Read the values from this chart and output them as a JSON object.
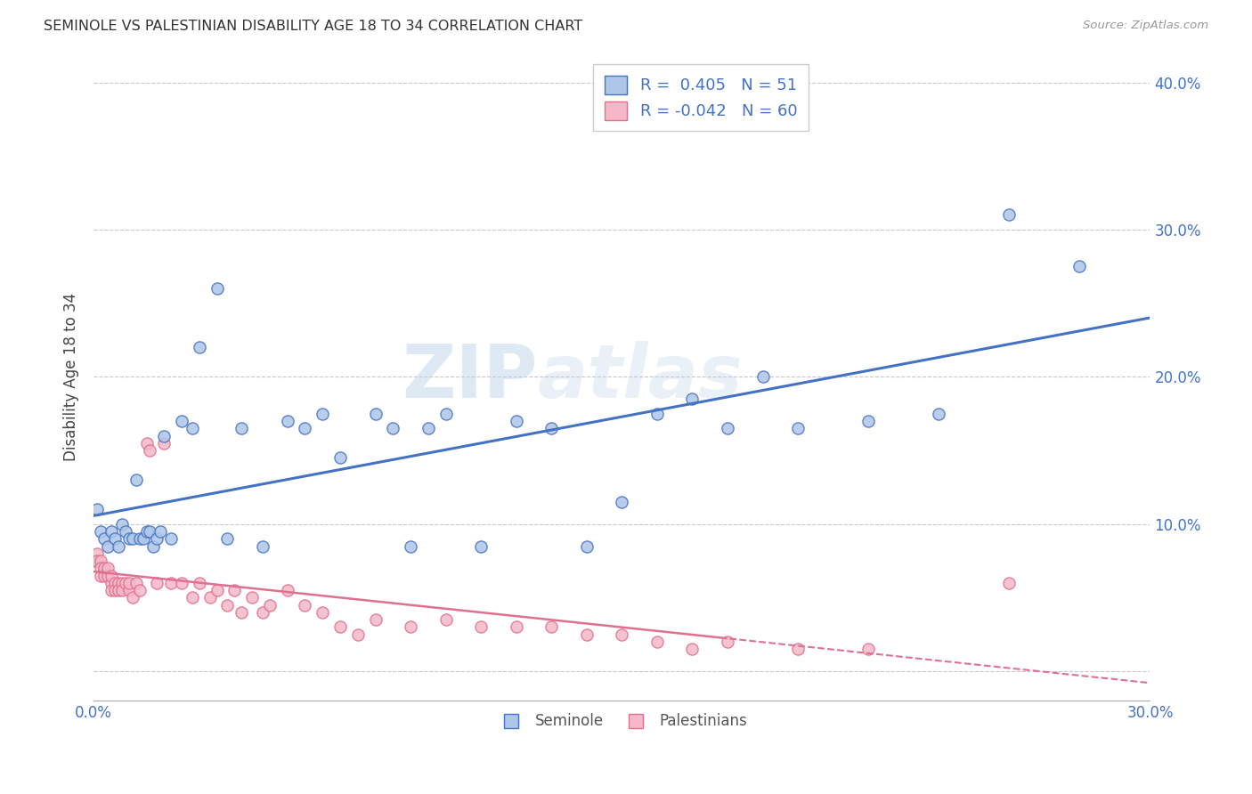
{
  "title": "SEMINOLE VS PALESTINIAN DISABILITY AGE 18 TO 34 CORRELATION CHART",
  "source": "Source: ZipAtlas.com",
  "ylabel": "Disability Age 18 to 34",
  "xlim": [
    0.0,
    0.3
  ],
  "ylim": [
    -0.02,
    0.42
  ],
  "seminole_R": 0.405,
  "seminole_N": 51,
  "palestinians_R": -0.042,
  "palestinians_N": 60,
  "seminole_color": "#aec6e8",
  "seminole_line_color": "#4472c4",
  "palestinians_color": "#f4b8c8",
  "palestinians_line_color": "#e07090",
  "background_color": "#ffffff",
  "grid_color": "#c8c8c8",
  "watermark": "ZIPatlas",
  "seminole_x": [
    0.001,
    0.002,
    0.003,
    0.004,
    0.005,
    0.006,
    0.007,
    0.008,
    0.009,
    0.01,
    0.011,
    0.012,
    0.013,
    0.014,
    0.015,
    0.016,
    0.017,
    0.018,
    0.019,
    0.02,
    0.022,
    0.025,
    0.028,
    0.03,
    0.035,
    0.038,
    0.042,
    0.048,
    0.055,
    0.06,
    0.065,
    0.07,
    0.08,
    0.085,
    0.09,
    0.095,
    0.1,
    0.11,
    0.12,
    0.13,
    0.14,
    0.15,
    0.16,
    0.17,
    0.18,
    0.19,
    0.2,
    0.22,
    0.24,
    0.26,
    0.28
  ],
  "seminole_y": [
    0.11,
    0.095,
    0.09,
    0.085,
    0.095,
    0.09,
    0.085,
    0.1,
    0.095,
    0.09,
    0.09,
    0.13,
    0.09,
    0.09,
    0.095,
    0.095,
    0.085,
    0.09,
    0.095,
    0.16,
    0.09,
    0.17,
    0.165,
    0.22,
    0.26,
    0.09,
    0.165,
    0.085,
    0.17,
    0.165,
    0.175,
    0.145,
    0.175,
    0.165,
    0.085,
    0.165,
    0.175,
    0.085,
    0.17,
    0.165,
    0.085,
    0.115,
    0.175,
    0.185,
    0.165,
    0.2,
    0.165,
    0.17,
    0.175,
    0.31,
    0.275
  ],
  "palestinians_x": [
    0.0,
    0.001,
    0.001,
    0.002,
    0.002,
    0.002,
    0.003,
    0.003,
    0.004,
    0.004,
    0.005,
    0.005,
    0.005,
    0.006,
    0.006,
    0.007,
    0.007,
    0.008,
    0.008,
    0.009,
    0.01,
    0.01,
    0.011,
    0.012,
    0.013,
    0.015,
    0.016,
    0.018,
    0.02,
    0.022,
    0.025,
    0.028,
    0.03,
    0.033,
    0.035,
    0.038,
    0.04,
    0.042,
    0.045,
    0.048,
    0.05,
    0.055,
    0.06,
    0.065,
    0.07,
    0.075,
    0.08,
    0.09,
    0.1,
    0.11,
    0.12,
    0.13,
    0.14,
    0.15,
    0.16,
    0.17,
    0.18,
    0.2,
    0.22,
    0.26
  ],
  "palestinians_y": [
    0.075,
    0.08,
    0.075,
    0.075,
    0.07,
    0.065,
    0.07,
    0.065,
    0.065,
    0.07,
    0.06,
    0.055,
    0.065,
    0.06,
    0.055,
    0.06,
    0.055,
    0.06,
    0.055,
    0.06,
    0.055,
    0.06,
    0.05,
    0.06,
    0.055,
    0.155,
    0.15,
    0.06,
    0.155,
    0.06,
    0.06,
    0.05,
    0.06,
    0.05,
    0.055,
    0.045,
    0.055,
    0.04,
    0.05,
    0.04,
    0.045,
    0.055,
    0.045,
    0.04,
    0.03,
    0.025,
    0.035,
    0.03,
    0.035,
    0.03,
    0.03,
    0.03,
    0.025,
    0.025,
    0.02,
    0.015,
    0.02,
    0.015,
    0.015,
    0.06
  ]
}
